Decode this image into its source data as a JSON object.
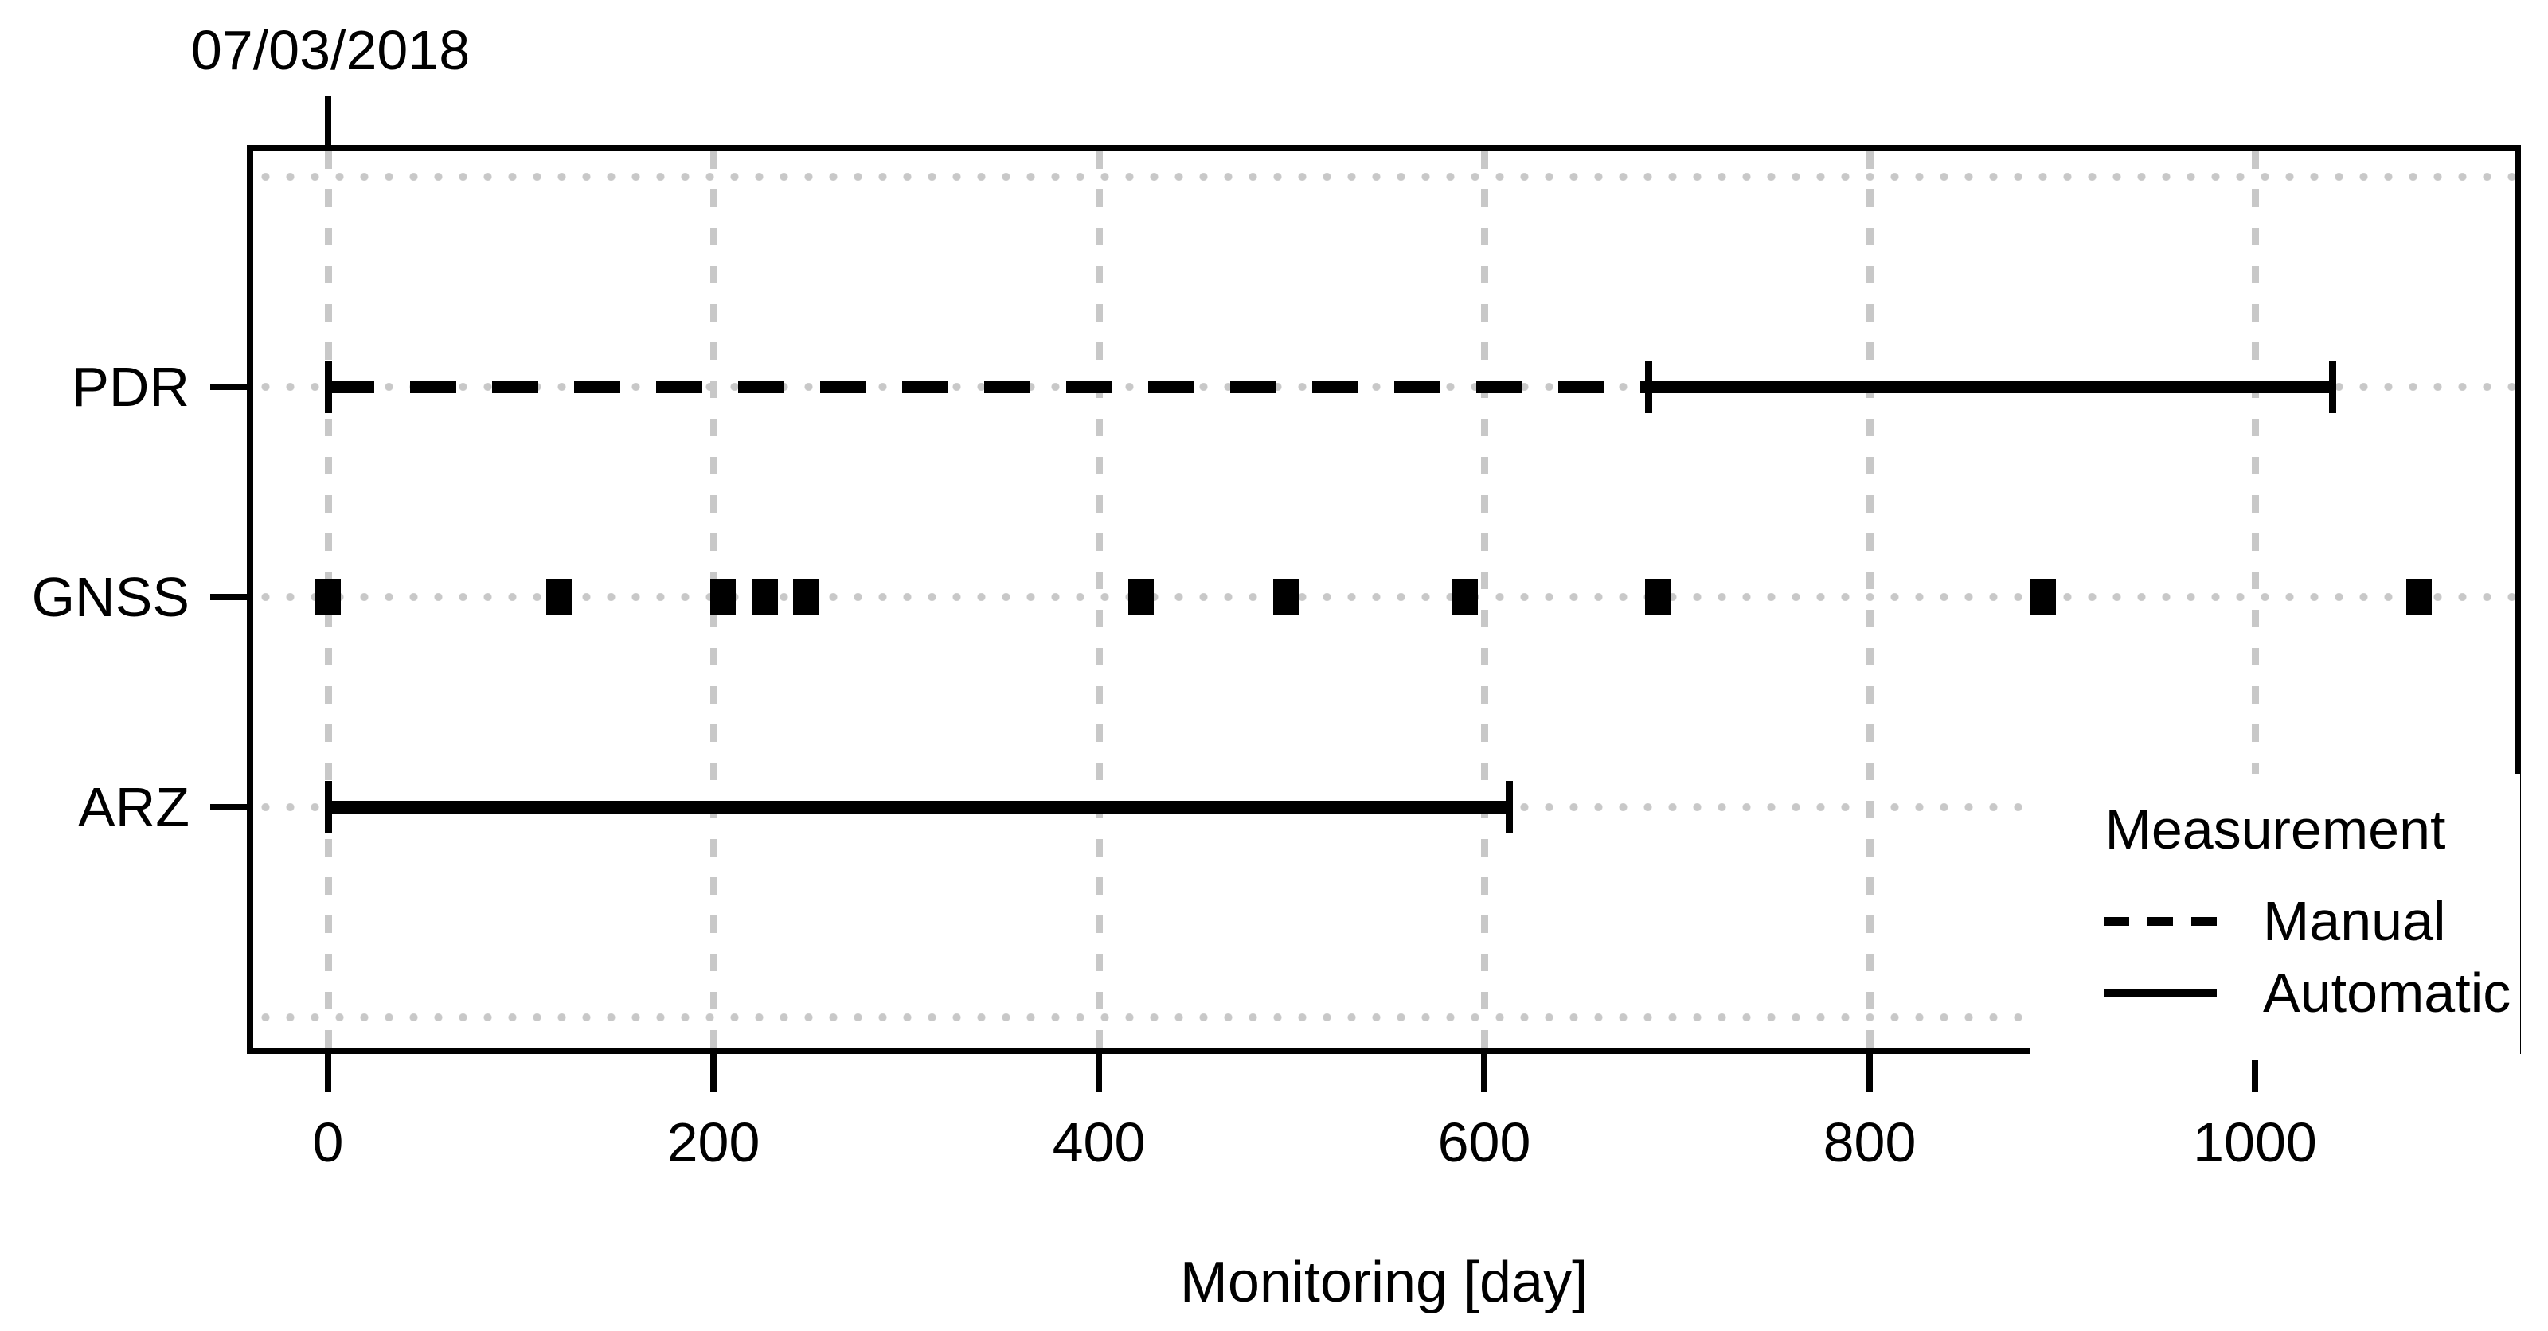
{
  "chart_data": {
    "type": "timeline",
    "xlabel": "Monitoring [day]",
    "x_axis": {
      "ticks": [
        0,
        200,
        400,
        600,
        800,
        1000
      ],
      "range_days": [
        -42,
        1139
      ],
      "grid": "dashed-vertical"
    },
    "annotation": {
      "text": "07/03/2018",
      "day": 0
    },
    "rows": [
      {
        "label": "PDR"
      },
      {
        "label": "GNSS"
      },
      {
        "label": "ARZ"
      }
    ],
    "grid_extra_rows": 2,
    "series": [
      {
        "row": "PDR",
        "type": "line",
        "segments": [
          {
            "measurement": "Manual",
            "style": "dashed",
            "start_day": 0,
            "end_day": 685
          },
          {
            "measurement": "Automatic",
            "style": "solid",
            "start_day": 685,
            "end_day": 1040
          }
        ],
        "end_tick_days": [
          0,
          685,
          1040
        ]
      },
      {
        "row": "GNSS",
        "type": "points",
        "marker": "filled-square",
        "point_days": [
          0,
          120,
          205,
          227,
          248,
          422,
          497,
          590,
          690,
          890,
          1085
        ]
      },
      {
        "row": "ARZ",
        "type": "line",
        "segments": [
          {
            "measurement": "Automatic",
            "style": "solid",
            "start_day": 0,
            "end_day": 613
          }
        ],
        "end_tick_days": [
          0,
          613
        ]
      }
    ],
    "legend": {
      "title": "Measurement",
      "position": "bottom-right-inside",
      "items": [
        {
          "label": "Manual",
          "style": "dashed"
        },
        {
          "label": "Automatic",
          "style": "solid"
        }
      ]
    },
    "colors": {
      "foreground": "#000000",
      "background": "#ffffff",
      "grid": "#c8c8c8"
    }
  }
}
